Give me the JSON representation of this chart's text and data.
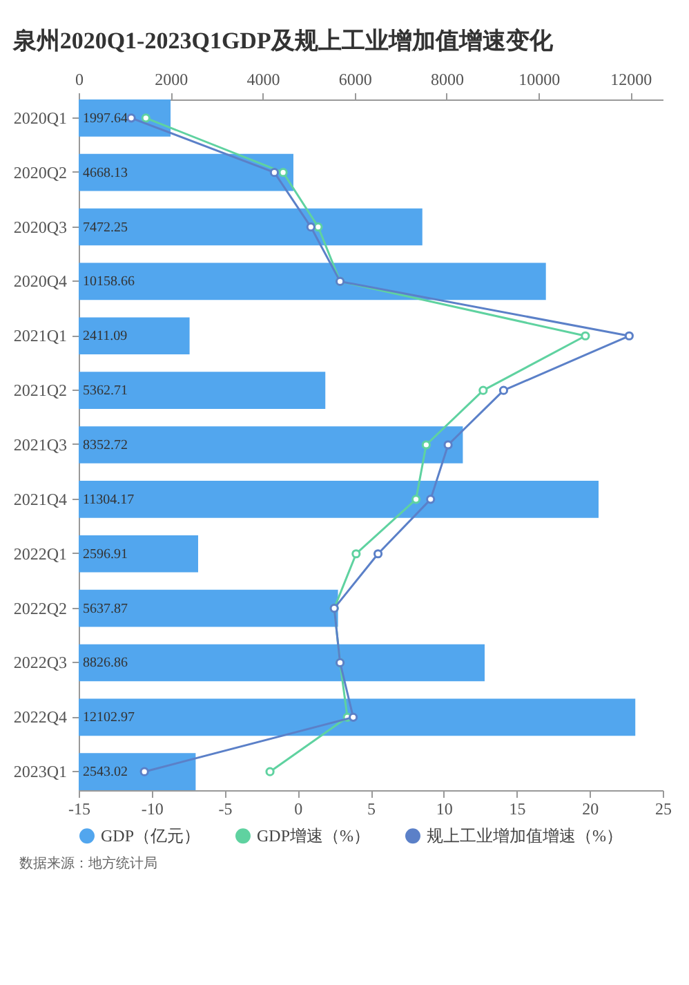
{
  "chart_data": {
    "type": "bar",
    "orientation": "horizontal",
    "title": "泉州2020Q1-2023Q1GDP及规上工业增加值增速变化",
    "categories": [
      "2020Q1",
      "2020Q2",
      "2020Q3",
      "2020Q4",
      "2021Q1",
      "2021Q2",
      "2021Q3",
      "2021Q4",
      "2022Q1",
      "2022Q2",
      "2022Q3",
      "2022Q4",
      "2023Q1"
    ],
    "series": [
      {
        "name": "GDP（亿元）",
        "axis": "x2",
        "color": "#52a6ee",
        "values": [
          1997.64,
          4668.13,
          7472.25,
          10158.66,
          2411.09,
          5362.71,
          8352.72,
          11304.17,
          2596.91,
          5637.87,
          8826.86,
          12102.97,
          2543.02
        ],
        "value_labels": [
          "1997.64",
          "4668.13",
          "7472.25",
          "10158.66",
          "2411.09",
          "5362.71",
          "8352.72",
          "11304.17",
          "2596.91",
          "5637.87",
          "8826.86",
          "12102.97",
          "2543.02"
        ]
      },
      {
        "name": "GDP增速（%）",
        "type": "line",
        "color": "#5fd2a0",
        "values": [
          -10.4,
          -1.0,
          1.4,
          2.9,
          19.7,
          12.7,
          8.8,
          8.1,
          4.0,
          2.5,
          2.9,
          3.4,
          -1.9
        ]
      },
      {
        "name": "规上工业增加值增速（%）",
        "type": "line",
        "color": "#5b80c8",
        "values": [
          -11.4,
          -1.6,
          0.9,
          2.9,
          22.7,
          14.1,
          10.3,
          9.1,
          5.5,
          2.5,
          2.9,
          3.8,
          -10.5
        ]
      }
    ],
    "xlim": [
      -15,
      25
    ],
    "xticks": [
      -15,
      -10,
      -5,
      0,
      5,
      10,
      15,
      20,
      25
    ],
    "x2lim": [
      0,
      12700
    ],
    "x2ticks": [
      0,
      2000,
      4000,
      6000,
      8000,
      10000,
      12000
    ],
    "legend": "bottom",
    "marker": "circle",
    "line_style": "solid",
    "grid": false,
    "annotations": [
      "数据来源：地方统计局"
    ]
  }
}
